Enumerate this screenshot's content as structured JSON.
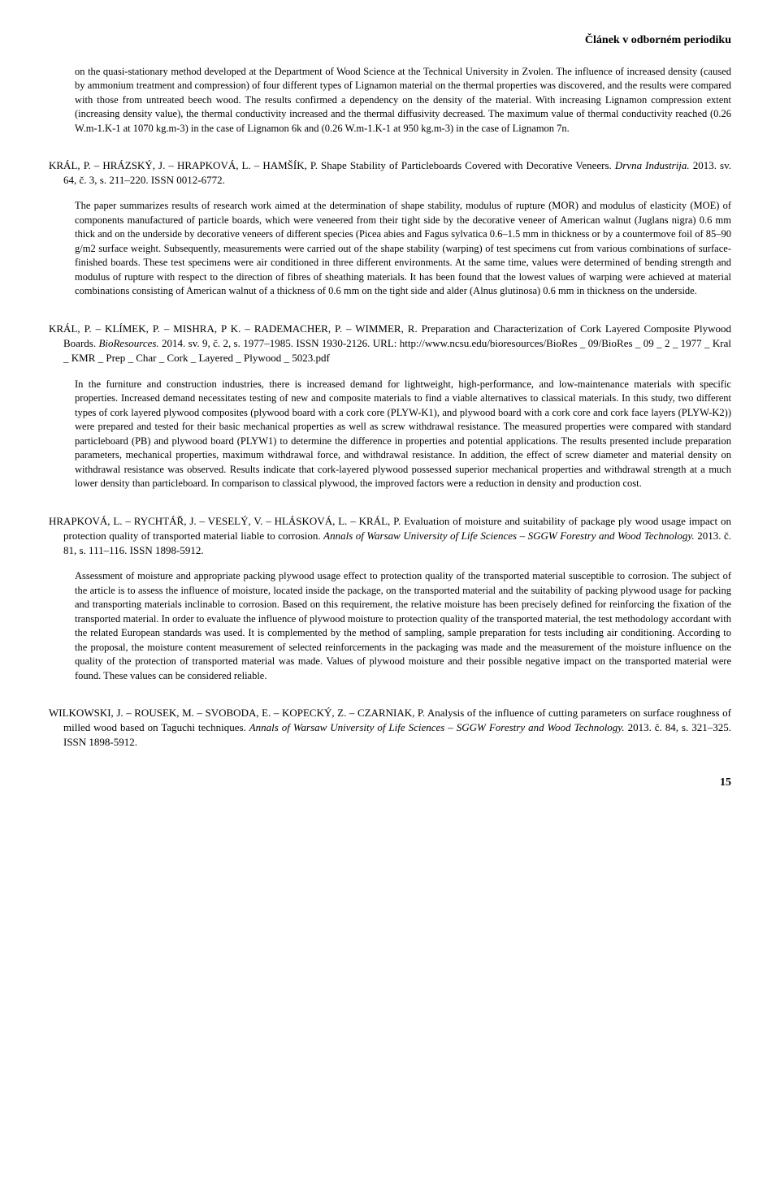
{
  "header": "Článek v odborném periodiku",
  "page_number": "15",
  "entries": [
    {
      "abstract": "on the quasi-stationary method developed at the Department of Wood Science at the Technical University in Zvolen. The influence of increased density (caused by ammonium treatment and compression) of four different types of Lignamon material on the thermal properties was discovered, and the results were compared with those from untreated beech wood. The results confirmed a dependency on the density of the material. With increasing Lignamon compression extent (increasing density value), the thermal conductivity increased and the thermal diffusivity decreased. The maximum value of thermal conductivity reached (0.26 W.m-1.K-1 at 1070 kg.m-3) in the case of Lignamon 6k and (0.26 W.m-1.K-1 at 950 kg.m-3) in the case of Lignamon 7n."
    },
    {
      "authors": "KRÁL, P. – HRÁZSKÝ, J. – HRAPKOVÁ, L. – HAMŠÍK, P.",
      "title": "Shape Stability of Particleboards Covered with Decorative Veneers.",
      "journal": "Drvna Industrija.",
      "details": " 2013. sv. 64, č. 3, s. 211–220. ISSN 0012-6772.",
      "abstract": "The paper summarizes results of research work aimed at the determination of shape stability, modulus of rupture (MOR) and modulus of elasticity (MOE) of components manufactured of particle boards, which were veneered from their tight side by the decorative veneer of American walnut (Juglans nigra) 0.6 mm thick and on the underside by decorative veneers of different species (Picea abies and Fagus sylvatica 0.6–1.5 mm in thickness or by a countermove foil of 85–90 g/m2 surface weight. Subsequently, measurements were carried out of the shape stability (warping) of test specimens cut from various combinations of surface-finished boards. These test specimens were air conditioned in three different environments. At the same time, values were determined of bending strength and modulus of rupture with respect to the direction of fibres of sheathing materials. It has been found that the lowest values of warping were achieved at material combinations consisting of American walnut of a thickness of 0.6 mm on the tight side and alder (Alnus glutinosa) 0.6 mm in thickness on the underside."
    },
    {
      "authors": "KRÁL, P. – KLÍMEK, P. – MISHRA, P K. – RADEMACHER, P. – WIMMER, R.",
      "title": "Preparation and Characterization of Cork Layered Composite Plywood Boards.",
      "journal": "BioResources.",
      "details": " 2014. sv. 9, č. 2, s. 1977–1985. ISSN 1930-2126. URL: http://www.ncsu.edu/bioresources/BioRes _ 09/BioRes _ 09 _ 2 _ 1977 _ Kral _ KMR _ Prep _ Char _ Cork _ Layered _ Plywood _ 5023.pdf",
      "abstract": "In the furniture and construction industries, there is increased demand for lightweight, high-performance, and low-maintenance materials with specific properties. Increased demand necessitates testing of new and composite materials to find a viable alternatives to classical materials. In this study, two different types of cork layered plywood composites (plywood board with a cork core (PLYW-K1), and plywood board with a cork core and cork face layers (PLYW-K2)) were prepared and tested for their basic mechanical properties as well as screw withdrawal resistance. The measured properties were compared with standard particleboard (PB) and plywood board (PLYW1) to determine the difference in properties and potential applications. The results presented include preparation parameters, mechanical properties, maximum withdrawal force, and withdrawal resistance. In addition, the effect of screw diameter and material density on withdrawal resistance was observed. Results indicate that cork-layered plywood possessed superior mechanical properties and withdrawal strength at a much lower density than particleboard. In comparison to classical plywood, the improved factors were a reduction in density and production cost."
    },
    {
      "authors": "HRAPKOVÁ, L. – RYCHTÁŘ, J. – VESELÝ, V. – HLÁSKOVÁ, L. – KRÁL, P.",
      "title": "Evaluation of moisture and suitability of package ply wood usage impact on protection quality of transported material liable to corrosion.",
      "journal": "Annals of Warsaw University of Life Sciences – SGGW Forestry and Wood Technology.",
      "details": " 2013. č. 81, s. 111–116. ISSN 1898-5912.",
      "abstract": "Assessment of moisture and appropriate packing plywood usage effect to protection quality of the transported material susceptible to corrosion. The subject of the article is to assess the influence of moisture, located inside the package, on the transported material and the suitability of packing plywood usage for packing and transporting materials inclinable to corrosion. Based on this requirement, the relative moisture has been precisely defined for reinforcing the fixation of the transported material. In order to evaluate the influence of plywood moisture to protection quality of the transported material, the test methodology accordant with the related European standards was used. It is complemented by the method of sampling, sample preparation for tests including air conditioning. According to the proposal, the moisture content measurement of selected reinforcements in the packaging was made and the measurement of the moisture influence on the quality of the protection of transported material was made. Values of plywood moisture and their possible negative impact on the transported material were found. These values can be considered reliable."
    },
    {
      "authors": "WILKOWSKI, J. – ROUSEK, M. – SVOBODA, E. – KOPECKÝ, Z. – CZARNIAK, P.",
      "title": "Analysis of the influence of cutting parameters on surface roughness of milled wood based on Taguchi techniques.",
      "journal": "Annals of Warsaw University of Life Sciences – SGGW Forestry and Wood Technology.",
      "details": " 2013. č. 84, s. 321–325. ISSN 1898-5912."
    }
  ]
}
